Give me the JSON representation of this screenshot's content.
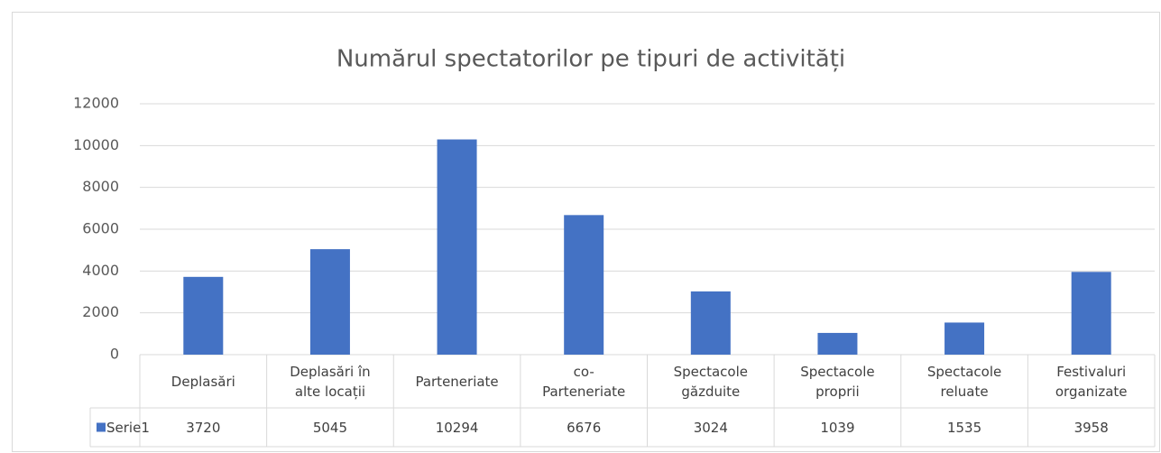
{
  "chart_data": {
    "type": "bar",
    "title": "Numărul spectatorilor pe tipuri de activități",
    "categories": [
      "Deplasări",
      "Deplasări în alte locații",
      "Parteneriate",
      "co-Parteneriate",
      "Spectacole găzduite",
      "Spectacole proprii",
      "Spectacole reluate",
      "Festivaluri organizate"
    ],
    "series": [
      {
        "name": "Serie1",
        "color": "#4472c4",
        "values": [
          3720,
          5045,
          10294,
          6676,
          3024,
          1039,
          1535,
          3958
        ]
      }
    ],
    "ylim": [
      0,
      12000
    ],
    "yticks": [
      0,
      2000,
      4000,
      6000,
      8000,
      10000,
      12000
    ],
    "grid": true
  }
}
